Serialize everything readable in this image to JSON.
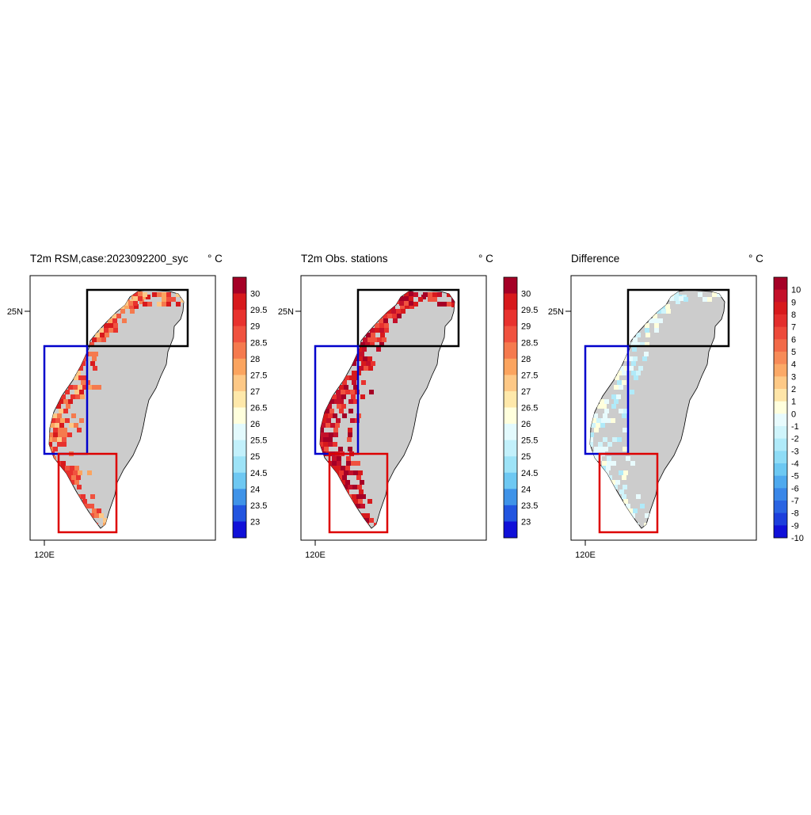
{
  "panels": [
    {
      "title": "T2m RSM,case:2023092200_syc",
      "unit": "° C",
      "colorbar_labels": [
        "30",
        "29.5",
        "29",
        "28.5",
        "28",
        "27.5",
        "27",
        "26.5",
        "26",
        "25.5",
        "25",
        "24.5",
        "24",
        "23.5",
        "23"
      ],
      "colors": [
        "#a50026",
        "#d7191c",
        "#e8322e",
        "#f0523f",
        "#f57a4e",
        "#fba45f",
        "#fdc886",
        "#fee8aa",
        "#ffffdd",
        "#e3fafd",
        "#c2f0fb",
        "#9de3f7",
        "#6ec8f2",
        "#3f93e8",
        "#2255e0",
        "#1010d8"
      ]
    },
    {
      "title": "T2m Obs. stations",
      "unit": "° C",
      "colorbar_labels": [
        "30",
        "29.5",
        "29",
        "28.5",
        "28",
        "27.5",
        "27",
        "26.5",
        "26",
        "25.5",
        "25",
        "24.5",
        "24",
        "23.5",
        "23"
      ],
      "colors": [
        "#a50026",
        "#d7191c",
        "#e8322e",
        "#f0523f",
        "#f57a4e",
        "#fba45f",
        "#fdc886",
        "#fee8aa",
        "#ffffdd",
        "#e3fafd",
        "#c2f0fb",
        "#9de3f7",
        "#6ec8f2",
        "#3f93e8",
        "#2255e0",
        "#1010d8"
      ]
    },
    {
      "title": "Difference",
      "unit": "° C",
      "colorbar_labels": [
        "10",
        "9",
        "8",
        "7",
        "6",
        "5",
        "4",
        "3",
        "2",
        "1",
        "0",
        "-1",
        "-2",
        "-3",
        "-4",
        "-5",
        "-6",
        "-7",
        "-8",
        "-9",
        "-10"
      ],
      "colors": [
        "#a50026",
        "#c4102a",
        "#d7191c",
        "#e32e2c",
        "#ed4a3a",
        "#f26a48",
        "#f78b58",
        "#fba967",
        "#fdc986",
        "#fee5a8",
        "#ffffdd",
        "#e8fbfd",
        "#cff4fb",
        "#b0eaf9",
        "#8edcf6",
        "#6cc8f2",
        "#4ea9ee",
        "#3a87e8",
        "#2a64e2",
        "#1d3fdc",
        "#1010d8"
      ]
    }
  ],
  "axes": {
    "x_tick_label": "120E",
    "y_tick_label": "25N"
  },
  "colors": {
    "land": "#cccccc",
    "box_north": "#000000",
    "box_west": "#0000cc",
    "box_south": "#dd0000"
  }
}
